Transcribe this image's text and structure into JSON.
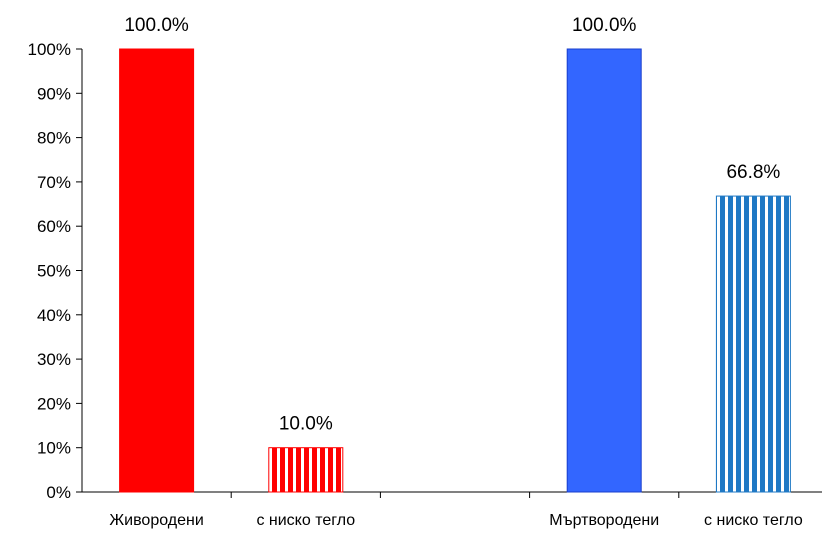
{
  "chart_data": {
    "type": "bar",
    "categories": [
      "Живородени",
      "с ниско тегло",
      "",
      "Мъртвородени",
      "с ниско тегло"
    ],
    "values": [
      100.0,
      10.0,
      null,
      100.0,
      66.8
    ],
    "data_labels": [
      "100.0%",
      "10.0%",
      "",
      "100.0%",
      "66.8%"
    ],
    "bar_styles": [
      "solid",
      "striped",
      "none",
      "solid",
      "striped"
    ],
    "bar_colors": [
      "#ff0000",
      "#ff0000",
      "",
      "#3366ff",
      "#1f78c4"
    ],
    "yticks": [
      "0%",
      "10%",
      "20%",
      "30%",
      "40%",
      "50%",
      "60%",
      "70%",
      "80%",
      "90%",
      "100%"
    ],
    "ylim": [
      0,
      100
    ],
    "title": "",
    "xlabel": "",
    "ylabel": "",
    "grid": false,
    "legend": "none"
  }
}
